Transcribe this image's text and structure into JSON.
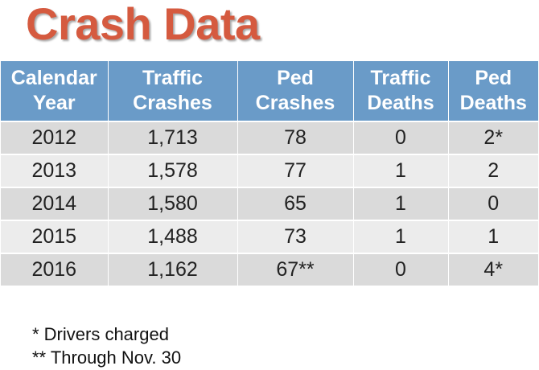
{
  "title": "Crash Data",
  "table": {
    "headers": [
      [
        "Calendar",
        "Year"
      ],
      [
        "Traffic",
        "Crashes"
      ],
      [
        "Ped",
        "Crashes"
      ],
      [
        "Traffic",
        "Deaths"
      ],
      [
        "Ped",
        "Deaths"
      ]
    ],
    "rows": [
      [
        "2012",
        "1,713",
        "78",
        "0",
        "2*"
      ],
      [
        "2013",
        "1,578",
        "77",
        "1",
        "2"
      ],
      [
        "2014",
        "1,580",
        "65",
        "1",
        "0"
      ],
      [
        "2015",
        "1,488",
        "73",
        "1",
        "1"
      ],
      [
        "2016",
        "1,162",
        "67**",
        "0",
        "4*"
      ]
    ]
  },
  "footnotes": [
    "* Drivers charged",
    "** Through Nov. 30"
  ],
  "colors": {
    "title": "#d55a3f",
    "header_bg": "#6a9bc8",
    "row_dark": "#dadada",
    "row_light": "#ececec"
  }
}
